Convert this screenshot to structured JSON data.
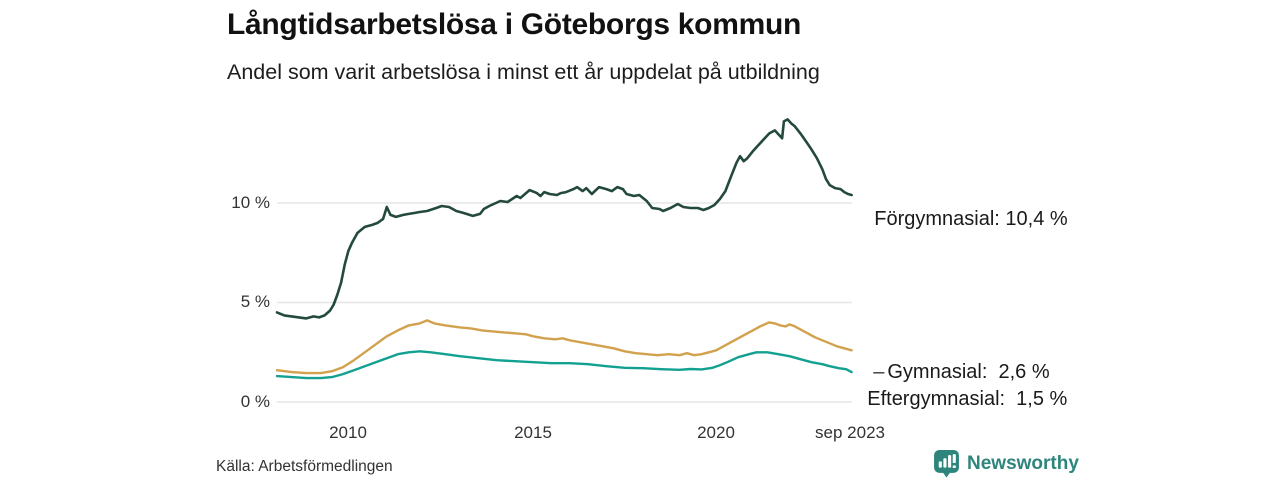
{
  "header": {
    "title": "Långtidsarbetslösa i Göteborgs kommun",
    "subtitle": "Andel som varit arbetslösa i minst ett år uppdelat på utbildning"
  },
  "footer": {
    "source": "Källa: Arbetsförmedlingen",
    "brand": "Newsworthy"
  },
  "colors": {
    "forgymnasial": "#24493d",
    "gymnasial": "#d2a14e",
    "eftergymnasial": "#12a191",
    "grid": "#e5e5e5",
    "text": "#1a1a1a",
    "axis_text": "#333333",
    "brand": "#2e857c"
  },
  "chart_data": {
    "type": "line",
    "title": "Långtidsarbetslösa i Göteborgs kommun",
    "subtitle": "Andel som varit arbetslösa i minst ett år uppdelat på utbildning",
    "unit": "%",
    "grid": "horizontal gridlines at 0, 5, 10 %",
    "legend_position": "direct labels at line ends, right side",
    "x_axis": {
      "range": [
        2008,
        2023.75
      ],
      "ticks": [
        2010,
        2015,
        2020,
        2023.67
      ],
      "tick_labels": [
        "2010",
        "2015",
        "2020",
        "sep 2023"
      ]
    },
    "y_axis": {
      "range_shown": [
        0,
        14.5
      ],
      "ticks": [
        10,
        5,
        0
      ],
      "tick_labels": [
        "10 %",
        "5 %",
        "0 %"
      ]
    },
    "series": [
      {
        "name": "Förgymnasial",
        "label": "Förgymnasial: 10,4 %",
        "end_value": "10,4 %",
        "color_key": "forgymnasial",
        "connector": "",
        "points": [
          [
            2008.0,
            4.5
          ],
          [
            2008.2,
            4.35
          ],
          [
            2008.4,
            4.3
          ],
          [
            2008.6,
            4.25
          ],
          [
            2008.8,
            4.2
          ],
          [
            2009.0,
            4.3
          ],
          [
            2009.15,
            4.25
          ],
          [
            2009.3,
            4.35
          ],
          [
            2009.45,
            4.6
          ],
          [
            2009.55,
            4.9
          ],
          [
            2009.65,
            5.4
          ],
          [
            2009.75,
            6.0
          ],
          [
            2009.85,
            6.9
          ],
          [
            2009.95,
            7.6
          ],
          [
            2010.05,
            8.0
          ],
          [
            2010.2,
            8.5
          ],
          [
            2010.4,
            8.8
          ],
          [
            2010.6,
            8.9
          ],
          [
            2010.75,
            9.0
          ],
          [
            2010.9,
            9.2
          ],
          [
            2011.0,
            9.8
          ],
          [
            2011.1,
            9.4
          ],
          [
            2011.25,
            9.3
          ],
          [
            2011.45,
            9.4
          ],
          [
            2011.6,
            9.45
          ],
          [
            2011.75,
            9.5
          ],
          [
            2011.9,
            9.55
          ],
          [
            2012.1,
            9.6
          ],
          [
            2012.35,
            9.75
          ],
          [
            2012.5,
            9.85
          ],
          [
            2012.7,
            9.8
          ],
          [
            2012.9,
            9.6
          ],
          [
            2013.1,
            9.5
          ],
          [
            2013.35,
            9.35
          ],
          [
            2013.55,
            9.45
          ],
          [
            2013.65,
            9.7
          ],
          [
            2013.8,
            9.85
          ],
          [
            2014.1,
            10.1
          ],
          [
            2014.3,
            10.05
          ],
          [
            2014.55,
            10.35
          ],
          [
            2014.65,
            10.25
          ],
          [
            2014.9,
            10.65
          ],
          [
            2015.1,
            10.5
          ],
          [
            2015.2,
            10.35
          ],
          [
            2015.3,
            10.55
          ],
          [
            2015.45,
            10.45
          ],
          [
            2015.65,
            10.4
          ],
          [
            2015.75,
            10.5
          ],
          [
            2015.9,
            10.55
          ],
          [
            2016.1,
            10.7
          ],
          [
            2016.2,
            10.8
          ],
          [
            2016.35,
            10.6
          ],
          [
            2016.45,
            10.75
          ],
          [
            2016.6,
            10.45
          ],
          [
            2016.8,
            10.8
          ],
          [
            2017.0,
            10.7
          ],
          [
            2017.15,
            10.6
          ],
          [
            2017.3,
            10.8
          ],
          [
            2017.45,
            10.7
          ],
          [
            2017.55,
            10.45
          ],
          [
            2017.75,
            10.35
          ],
          [
            2017.9,
            10.4
          ],
          [
            2018.1,
            10.1
          ],
          [
            2018.25,
            9.75
          ],
          [
            2018.45,
            9.7
          ],
          [
            2018.55,
            9.6
          ],
          [
            2018.75,
            9.75
          ],
          [
            2018.95,
            9.95
          ],
          [
            2019.1,
            9.8
          ],
          [
            2019.3,
            9.75
          ],
          [
            2019.5,
            9.75
          ],
          [
            2019.65,
            9.65
          ],
          [
            2019.8,
            9.75
          ],
          [
            2019.95,
            9.9
          ],
          [
            2020.1,
            10.2
          ],
          [
            2020.25,
            10.6
          ],
          [
            2020.4,
            11.3
          ],
          [
            2020.55,
            12.0
          ],
          [
            2020.65,
            12.35
          ],
          [
            2020.75,
            12.1
          ],
          [
            2020.85,
            12.25
          ],
          [
            2021.0,
            12.6
          ],
          [
            2021.15,
            12.9
          ],
          [
            2021.3,
            13.2
          ],
          [
            2021.45,
            13.5
          ],
          [
            2021.6,
            13.65
          ],
          [
            2021.7,
            13.45
          ],
          [
            2021.8,
            13.25
          ],
          [
            2021.85,
            14.1
          ],
          [
            2021.95,
            14.2
          ],
          [
            2022.05,
            14.0
          ],
          [
            2022.15,
            13.85
          ],
          [
            2022.3,
            13.5
          ],
          [
            2022.45,
            13.1
          ],
          [
            2022.6,
            12.7
          ],
          [
            2022.75,
            12.25
          ],
          [
            2022.9,
            11.7
          ],
          [
            2023.0,
            11.2
          ],
          [
            2023.1,
            10.9
          ],
          [
            2023.25,
            10.75
          ],
          [
            2023.4,
            10.7
          ],
          [
            2023.5,
            10.55
          ],
          [
            2023.6,
            10.45
          ],
          [
            2023.7,
            10.4
          ]
        ]
      },
      {
        "name": "Gymnasial",
        "label": "Gymnasial:  2,6 %",
        "end_value": "2,6 %",
        "color_key": "gymnasial",
        "connector": "–",
        "points": [
          [
            2008.0,
            1.6
          ],
          [
            2008.4,
            1.5
          ],
          [
            2008.8,
            1.45
          ],
          [
            2009.2,
            1.45
          ],
          [
            2009.5,
            1.55
          ],
          [
            2009.8,
            1.75
          ],
          [
            2010.1,
            2.1
          ],
          [
            2010.4,
            2.5
          ],
          [
            2010.7,
            2.9
          ],
          [
            2011.0,
            3.3
          ],
          [
            2011.3,
            3.6
          ],
          [
            2011.6,
            3.85
          ],
          [
            2011.9,
            3.95
          ],
          [
            2012.1,
            4.1
          ],
          [
            2012.3,
            3.95
          ],
          [
            2012.6,
            3.85
          ],
          [
            2013.0,
            3.75
          ],
          [
            2013.3,
            3.7
          ],
          [
            2013.6,
            3.6
          ],
          [
            2013.9,
            3.55
          ],
          [
            2014.2,
            3.5
          ],
          [
            2014.5,
            3.45
          ],
          [
            2014.8,
            3.4
          ],
          [
            2015.0,
            3.3
          ],
          [
            2015.3,
            3.2
          ],
          [
            2015.6,
            3.15
          ],
          [
            2015.8,
            3.2
          ],
          [
            2016.0,
            3.1
          ],
          [
            2016.3,
            3.0
          ],
          [
            2016.6,
            2.9
          ],
          [
            2016.9,
            2.8
          ],
          [
            2017.2,
            2.7
          ],
          [
            2017.5,
            2.55
          ],
          [
            2017.8,
            2.45
          ],
          [
            2018.1,
            2.4
          ],
          [
            2018.4,
            2.35
          ],
          [
            2018.7,
            2.4
          ],
          [
            2019.0,
            2.35
          ],
          [
            2019.2,
            2.45
          ],
          [
            2019.4,
            2.35
          ],
          [
            2019.6,
            2.4
          ],
          [
            2019.8,
            2.5
          ],
          [
            2020.0,
            2.6
          ],
          [
            2020.2,
            2.8
          ],
          [
            2020.4,
            3.0
          ],
          [
            2020.6,
            3.2
          ],
          [
            2020.8,
            3.4
          ],
          [
            2021.0,
            3.6
          ],
          [
            2021.2,
            3.8
          ],
          [
            2021.45,
            4.0
          ],
          [
            2021.6,
            3.95
          ],
          [
            2021.75,
            3.85
          ],
          [
            2021.9,
            3.8
          ],
          [
            2022.0,
            3.9
          ],
          [
            2022.15,
            3.8
          ],
          [
            2022.3,
            3.65
          ],
          [
            2022.5,
            3.45
          ],
          [
            2022.7,
            3.25
          ],
          [
            2022.9,
            3.1
          ],
          [
            2023.1,
            2.95
          ],
          [
            2023.3,
            2.8
          ],
          [
            2023.5,
            2.7
          ],
          [
            2023.7,
            2.6
          ]
        ]
      },
      {
        "name": "Eftergymnasial",
        "label": "Eftergymnasial:  1,5 %",
        "end_value": "1,5 %",
        "color_key": "eftergymnasial",
        "connector": "",
        "points": [
          [
            2008.0,
            1.3
          ],
          [
            2008.4,
            1.25
          ],
          [
            2008.8,
            1.2
          ],
          [
            2009.2,
            1.2
          ],
          [
            2009.5,
            1.25
          ],
          [
            2009.8,
            1.4
          ],
          [
            2010.1,
            1.6
          ],
          [
            2010.4,
            1.8
          ],
          [
            2010.7,
            2.0
          ],
          [
            2011.0,
            2.2
          ],
          [
            2011.3,
            2.4
          ],
          [
            2011.6,
            2.5
          ],
          [
            2011.9,
            2.55
          ],
          [
            2012.2,
            2.5
          ],
          [
            2012.6,
            2.4
          ],
          [
            2013.0,
            2.3
          ],
          [
            2013.5,
            2.2
          ],
          [
            2014.0,
            2.1
          ],
          [
            2014.5,
            2.05
          ],
          [
            2015.0,
            2.0
          ],
          [
            2015.5,
            1.95
          ],
          [
            2016.0,
            1.95
          ],
          [
            2016.5,
            1.9
          ],
          [
            2017.0,
            1.8
          ],
          [
            2017.5,
            1.72
          ],
          [
            2018.0,
            1.7
          ],
          [
            2018.5,
            1.65
          ],
          [
            2019.0,
            1.62
          ],
          [
            2019.3,
            1.66
          ],
          [
            2019.6,
            1.64
          ],
          [
            2019.9,
            1.72
          ],
          [
            2020.1,
            1.85
          ],
          [
            2020.3,
            2.0
          ],
          [
            2020.6,
            2.25
          ],
          [
            2020.9,
            2.4
          ],
          [
            2021.1,
            2.5
          ],
          [
            2021.4,
            2.5
          ],
          [
            2021.7,
            2.4
          ],
          [
            2022.0,
            2.3
          ],
          [
            2022.3,
            2.15
          ],
          [
            2022.6,
            2.0
          ],
          [
            2022.9,
            1.9
          ],
          [
            2023.1,
            1.8
          ],
          [
            2023.35,
            1.7
          ],
          [
            2023.55,
            1.65
          ],
          [
            2023.7,
            1.5
          ]
        ]
      }
    ]
  }
}
